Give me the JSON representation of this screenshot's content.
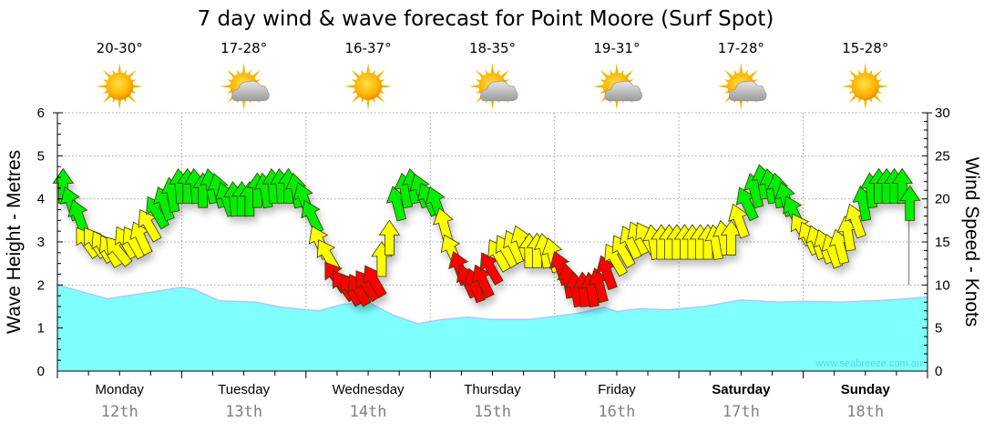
{
  "chart_data": {
    "type": "area",
    "title": "7 day wind & wave forecast for Point Moore (Surf Spot)",
    "ylabel_left": "Wave Height - Metres",
    "ylabel_right": "Wind Speed - Knots",
    "ylim_left": [
      0,
      6
    ],
    "ylim_right": [
      0,
      30
    ],
    "yticks_left": [
      "0",
      "1",
      "2",
      "3",
      "4",
      "5",
      "6"
    ],
    "yticks_right": [
      "0",
      "5",
      "10",
      "15",
      "20",
      "25",
      "30"
    ],
    "grid": true,
    "watermark": "www.seabreeze.com.au",
    "days": [
      {
        "day": "Monday",
        "date": "12th",
        "temp": "20-30°",
        "weather": "sunny-icon",
        "bold": false
      },
      {
        "day": "Tuesday",
        "date": "13th",
        "temp": "17-28°",
        "weather": "partly-cloudy-icon",
        "bold": false
      },
      {
        "day": "Wednesday",
        "date": "14th",
        "temp": "16-37°",
        "weather": "sunny-icon",
        "bold": false
      },
      {
        "day": "Thursday",
        "date": "15th",
        "temp": "18-35°",
        "weather": "partly-cloudy-icon",
        "bold": false
      },
      {
        "day": "Friday",
        "date": "16th",
        "temp": "19-31°",
        "weather": "partly-cloudy-icon",
        "bold": false
      },
      {
        "day": "Saturday",
        "date": "17th",
        "temp": "17-28°",
        "weather": "partly-cloudy-icon",
        "bold": true
      },
      {
        "day": "Sunday",
        "date": "18th",
        "temp": "15-28°",
        "weather": "sunny-icon",
        "bold": true
      }
    ],
    "wave_series": {
      "name": "Wave Height",
      "x_days": [
        0,
        0.4,
        0.8,
        1.0,
        1.1,
        1.3,
        1.6,
        1.8,
        2.1,
        2.3,
        2.5,
        2.7,
        2.9,
        3.1,
        3.3,
        3.5,
        3.8,
        4.0,
        4.2,
        4.4,
        4.5,
        4.6,
        4.7,
        4.9,
        5.1,
        5.2,
        5.5,
        5.8,
        6.0,
        6.3,
        6.7,
        7.0
      ],
      "values": [
        2.0,
        1.68,
        1.85,
        1.95,
        1.9,
        1.63,
        1.6,
        1.48,
        1.4,
        1.55,
        1.6,
        1.3,
        1.1,
        1.2,
        1.25,
        1.2,
        1.2,
        1.27,
        1.35,
        1.48,
        1.38,
        1.42,
        1.45,
        1.42,
        1.47,
        1.5,
        1.65,
        1.6,
        1.62,
        1.6,
        1.65,
        1.72
      ],
      "color": "#80ffff"
    },
    "wind_series": {
      "name": "Wind Speed",
      "steps_per_day": 16,
      "values": [
        21.5,
        19.5,
        18,
        15,
        15,
        14.5,
        14,
        14,
        15,
        15,
        15.5,
        17,
        18.5,
        19.5,
        20.5,
        21.5,
        21.5,
        21.5,
        21,
        21.5,
        21,
        20,
        20,
        20,
        20,
        21,
        21,
        21.5,
        21.5,
        21.5,
        21,
        20,
        18,
        15,
        13.5,
        11,
        10,
        9.5,
        9.5,
        10,
        10.5,
        13,
        15.5,
        19.5,
        21,
        21.5,
        21,
        20,
        19.5,
        17,
        14,
        12,
        10.5,
        10,
        10.5,
        12,
        13.5,
        14,
        14.5,
        15,
        14,
        14,
        14,
        13.5,
        12,
        10.5,
        9.5,
        9.5,
        9.5,
        10,
        11.5,
        13,
        14,
        15,
        15.5,
        15.5,
        15,
        15,
        15,
        15,
        15,
        15,
        15,
        15,
        15,
        15.5,
        15.5,
        17.5,
        19.5,
        21,
        22,
        21.5,
        21,
        20,
        18.5,
        16.5,
        15.5,
        15,
        14.5,
        14,
        14.5,
        16,
        17.5,
        19.5,
        21,
        21.5,
        21.5,
        21.5,
        21.5,
        19.5
      ],
      "directions_deg": [
        0,
        -20,
        -20,
        -35,
        -35,
        -30,
        -30,
        -40,
        -30,
        -30,
        -25,
        -30,
        -30,
        -20,
        -10,
        -5,
        0,
        -5,
        0,
        -10,
        -15,
        -20,
        -5,
        0,
        0,
        0,
        -10,
        -5,
        -5,
        0,
        -10,
        -20,
        -25,
        -25,
        -30,
        -35,
        -35,
        -30,
        -30,
        -35,
        -30,
        0,
        0,
        -15,
        -10,
        -10,
        -20,
        -25,
        -20,
        -15,
        -25,
        -20,
        -25,
        -20,
        -25,
        -30,
        -30,
        -30,
        -25,
        -20,
        0,
        0,
        -10,
        -15,
        -20,
        -10,
        -10,
        -5,
        -10,
        -15,
        -20,
        -30,
        -30,
        -25,
        -25,
        -30,
        -10,
        0,
        0,
        0,
        0,
        0,
        0,
        0,
        -10,
        -10,
        0,
        -20,
        -25,
        -15,
        -10,
        -10,
        -10,
        -15,
        -25,
        -30,
        -25,
        -20,
        -20,
        -20,
        -15,
        -10,
        -20,
        -10,
        -5,
        0,
        0,
        0,
        0,
        0
      ],
      "color_scale": {
        "green": "#00ee00",
        "yellow": "#ffff00",
        "red": "#ff0000"
      },
      "thresholds_knots": {
        "green_min": 18,
        "red_max": 12
      },
      "end_value": 10
    }
  }
}
